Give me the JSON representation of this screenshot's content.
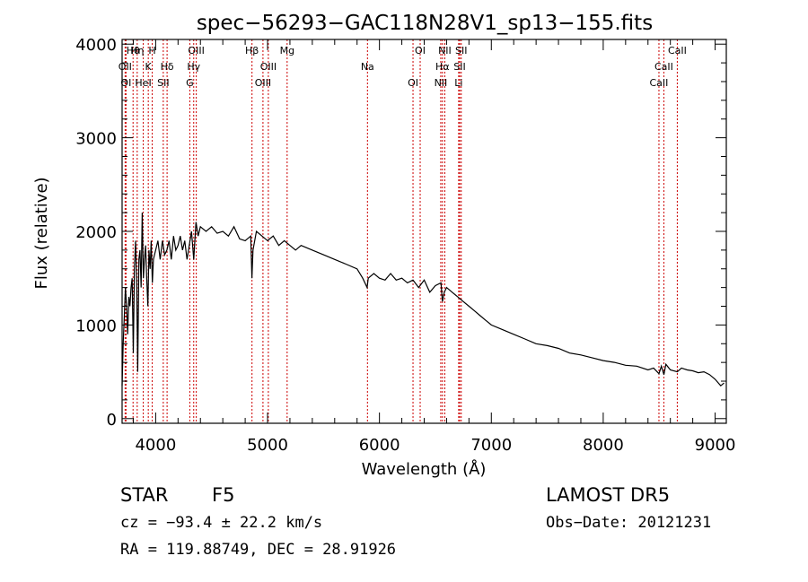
{
  "chart_data": {
    "type": "line",
    "title": "spec−56293−GAC118N28V1_sp13−155.fits",
    "xlabel": "Wavelength (Å)",
    "ylabel": "Flux (relative)",
    "xlim": [
      3700,
      9100
    ],
    "ylim": [
      -50,
      4050
    ],
    "xticks": [
      4000,
      5000,
      6000,
      7000,
      8000,
      9000
    ],
    "yticks": [
      0,
      1000,
      2000,
      3000,
      4000
    ],
    "grid": false,
    "series": [
      {
        "x": [
          3700,
          3710,
          3720,
          3730,
          3740,
          3750,
          3760,
          3770,
          3780,
          3790,
          3800,
          3810,
          3820,
          3830,
          3840,
          3850,
          3860,
          3870,
          3880,
          3890,
          3900,
          3910,
          3920,
          3930,
          3940,
          3950,
          3960,
          3970,
          3980,
          3990,
          4000,
          4020,
          4040,
          4060,
          4080,
          4100,
          4120,
          4140,
          4160,
          4180,
          4200,
          4220,
          4240,
          4260,
          4280,
          4300,
          4320,
          4340,
          4360,
          4380,
          4400,
          4450,
          4500,
          4550,
          4600,
          4650,
          4700,
          4750,
          4800,
          4850,
          4860,
          4870,
          4900,
          4950,
          5000,
          5050,
          5100,
          5150,
          5200,
          5250,
          5300,
          5400,
          5500,
          5600,
          5700,
          5800,
          5850,
          5890,
          5900,
          5950,
          6000,
          6050,
          6100,
          6150,
          6200,
          6250,
          6300,
          6350,
          6400,
          6450,
          6500,
          6550,
          6563,
          6580,
          6600,
          6650,
          6700,
          6750,
          6800,
          6850,
          6900,
          6950,
          7000,
          7100,
          7200,
          7300,
          7400,
          7500,
          7600,
          7700,
          7800,
          7900,
          8000,
          8100,
          8200,
          8300,
          8400,
          8450,
          8498,
          8520,
          8542,
          8560,
          8600,
          8662,
          8700,
          8750,
          8800,
          8850,
          8900,
          8950,
          9000,
          9050,
          9080
        ],
        "y": [
          350,
          800,
          1100,
          1400,
          1200,
          900,
          1300,
          1200,
          1400,
          1500,
          700,
          1600,
          1900,
          1500,
          500,
          1700,
          1800,
          1400,
          2200,
          1500,
          1700,
          1850,
          1500,
          1200,
          1800,
          1600,
          1900,
          1450,
          1700,
          1750,
          1800,
          1900,
          1700,
          1900,
          1750,
          1800,
          1900,
          1700,
          1950,
          1800,
          1850,
          1950,
          1800,
          1900,
          1700,
          1850,
          2000,
          1700,
          2100,
          1950,
          2050,
          2000,
          2050,
          1980,
          2000,
          1950,
          2050,
          1920,
          1900,
          1950,
          1500,
          1800,
          2000,
          1950,
          1900,
          1950,
          1850,
          1900,
          1850,
          1800,
          1850,
          1800,
          1750,
          1700,
          1650,
          1600,
          1500,
          1400,
          1500,
          1550,
          1500,
          1480,
          1550,
          1480,
          1500,
          1450,
          1480,
          1400,
          1480,
          1350,
          1420,
          1450,
          1250,
          1350,
          1400,
          1350,
          1300,
          1250,
          1200,
          1150,
          1100,
          1050,
          1000,
          950,
          900,
          850,
          800,
          780,
          750,
          700,
          680,
          650,
          620,
          600,
          570,
          560,
          520,
          540,
          480,
          560,
          470,
          580,
          520,
          500,
          540,
          520,
          510,
          490,
          500,
          470,
          420,
          350,
          380
        ]
      }
    ],
    "line_labels": [
      {
        "label": "Hθ",
        "x": 3798
      },
      {
        "label": "OII",
        "x": 3727
      },
      {
        "label": "OI",
        "x": 3735
      },
      {
        "label": "Hη",
        "x": 3835
      },
      {
        "label": "K",
        "x": 3934
      },
      {
        "label": "HeI",
        "x": 3889
      },
      {
        "label": "H",
        "x": 3969
      },
      {
        "label": "Hδ",
        "x": 4102
      },
      {
        "label": "SII",
        "x": 4068
      },
      {
        "label": "OIII",
        "x": 4363
      },
      {
        "label": "Hγ",
        "x": 4340
      },
      {
        "label": "G",
        "x": 4305
      },
      {
        "label": "Hβ",
        "x": 4861
      },
      {
        "label": "OIII",
        "x": 5007
      },
      {
        "label": "OIII",
        "x": 4959
      },
      {
        "label": "Mg",
        "x": 5175
      },
      {
        "label": "Na",
        "x": 5893
      },
      {
        "label": "OI",
        "x": 6300
      },
      {
        "label": "OI",
        "x": 6364
      },
      {
        "label": "Hα",
        "x": 6563
      },
      {
        "label": "NII",
        "x": 6548
      },
      {
        "label": "NII",
        "x": 6584
      },
      {
        "label": "SII",
        "x": 6717
      },
      {
        "label": "Li",
        "x": 6708
      },
      {
        "label": "SII",
        "x": 6731
      },
      {
        "label": "CaII",
        "x": 8542
      },
      {
        "label": "CaII",
        "x": 8498
      },
      {
        "label": "CaII",
        "x": 8662
      }
    ],
    "line_color": "#cc0000"
  },
  "info": {
    "class": "STAR",
    "subclass": "F5",
    "survey": "LAMOST DR5",
    "cz": "cz = −93.4 ± 22.2 km/s",
    "obsdate": "Obs−Date: 20121231",
    "radec": "RA = 119.88749, DEC =  28.91926"
  }
}
